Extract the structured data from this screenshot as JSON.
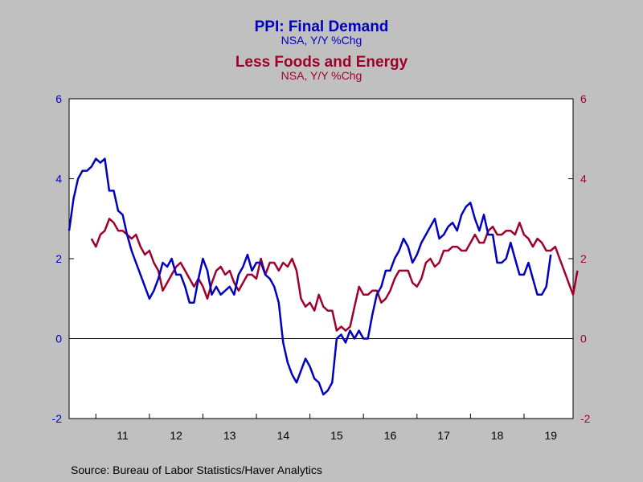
{
  "chart_data": {
    "type": "line",
    "title": "PPI: Final Demand",
    "title_sub": "NSA, Y/Y %Chg",
    "title2": "Less Foods and Energy",
    "title2_sub": "NSA, Y/Y %Chg",
    "source": "Source:  Bureau of Labor Statistics/Haver Analytics",
    "ylim": [
      -2,
      6
    ],
    "y_ticks": [
      "-2",
      "0",
      "2",
      "4",
      "6"
    ],
    "x_start": 2010.5,
    "x_end": 2019.917,
    "x_labels": [
      "11",
      "12",
      "13",
      "14",
      "15",
      "16",
      "17",
      "18",
      "19"
    ],
    "grid": false,
    "colors": {
      "final_demand": "#0000c0",
      "core": "#a0002a",
      "axis_left": "#0000c0",
      "axis_right": "#a0002a",
      "background": "#c0c0c0",
      "plot": "#ffffff"
    },
    "series": [
      {
        "name": "PPI: Final Demand",
        "start": 2010.5,
        "step": 0.08333,
        "values": [
          2.7,
          3.5,
          4.0,
          4.2,
          4.2,
          4.3,
          4.5,
          4.4,
          4.5,
          3.7,
          3.7,
          3.2,
          3.1,
          2.6,
          2.2,
          1.9,
          1.6,
          1.3,
          1.0,
          1.2,
          1.5,
          1.9,
          1.8,
          2.0,
          1.6,
          1.6,
          1.3,
          0.9,
          0.9,
          1.5,
          2.0,
          1.7,
          1.1,
          1.3,
          1.1,
          1.2,
          1.3,
          1.1,
          1.6,
          1.8,
          2.1,
          1.7,
          1.9,
          1.9,
          1.6,
          1.5,
          1.3,
          0.9,
          -0.1,
          -0.6,
          -0.9,
          -1.1,
          -0.8,
          -0.5,
          -0.7,
          -1.0,
          -1.1,
          -1.4,
          -1.3,
          -1.1,
          0.0,
          0.1,
          -0.1,
          0.2,
          0.0,
          0.2,
          0.0,
          0.0,
          0.6,
          1.1,
          1.3,
          1.7,
          1.7,
          2.0,
          2.2,
          2.5,
          2.3,
          1.9,
          2.1,
          2.4,
          2.6,
          2.8,
          3.0,
          2.5,
          2.6,
          2.8,
          2.9,
          2.7,
          3.1,
          3.3,
          3.4,
          3.0,
          2.7,
          3.1,
          2.6,
          2.6,
          1.9,
          1.9,
          2.0,
          2.4,
          2.0,
          1.6,
          1.6,
          1.9,
          1.5,
          1.1,
          1.1,
          1.3,
          2.1
        ]
      },
      {
        "name": "Less Foods and Energy",
        "start": 2010.917,
        "step": 0.08333,
        "values": [
          2.5,
          2.3,
          2.6,
          2.7,
          3.0,
          2.9,
          2.7,
          2.7,
          2.6,
          2.5,
          2.6,
          2.3,
          2.1,
          2.2,
          1.9,
          1.7,
          1.2,
          1.4,
          1.6,
          1.8,
          1.9,
          1.7,
          1.5,
          1.3,
          1.5,
          1.3,
          1.0,
          1.4,
          1.7,
          1.8,
          1.6,
          1.7,
          1.4,
          1.2,
          1.4,
          1.6,
          1.6,
          1.5,
          2.0,
          1.6,
          1.9,
          1.9,
          1.7,
          1.9,
          1.8,
          2.0,
          1.7,
          1.0,
          0.8,
          0.9,
          0.7,
          1.1,
          0.8,
          0.7,
          0.7,
          0.2,
          0.3,
          0.2,
          0.3,
          0.8,
          1.3,
          1.1,
          1.1,
          1.2,
          1.2,
          0.9,
          1.0,
          1.2,
          1.5,
          1.7,
          1.7,
          1.7,
          1.4,
          1.3,
          1.5,
          1.9,
          2.0,
          1.8,
          1.9,
          2.2,
          2.2,
          2.3,
          2.3,
          2.2,
          2.2,
          2.4,
          2.6,
          2.4,
          2.4,
          2.7,
          2.8,
          2.6,
          2.6,
          2.7,
          2.7,
          2.6,
          2.9,
          2.6,
          2.5,
          2.3,
          2.5,
          2.4,
          2.2,
          2.2,
          2.3,
          2.0,
          1.7,
          1.4,
          1.1,
          1.7
        ]
      }
    ]
  }
}
